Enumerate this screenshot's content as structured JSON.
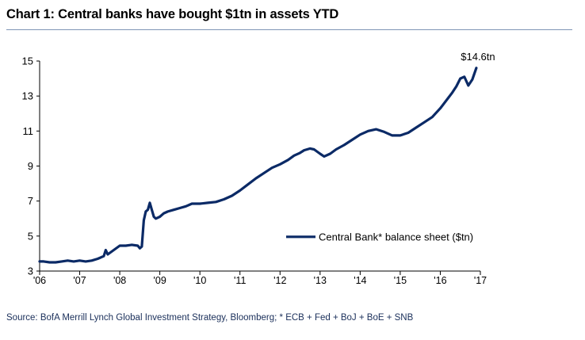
{
  "title": "Chart 1: Central banks have bought $1tn in assets YTD",
  "source": "Source: BofA Merrill Lynch Global Investment Strategy, Bloomberg; * ECB + Fed + BoJ + BoE + SNB",
  "colors": {
    "series": "#0b2a66",
    "rule": "#7f95b5",
    "axis": "#000000"
  },
  "chart_data": {
    "type": "line",
    "title": "Chart 1: Central banks have bought $1tn in assets YTD",
    "xlabel": "",
    "ylabel": "",
    "x_tick_labels": [
      "'06",
      "'07",
      "'08",
      "'09",
      "'10",
      "'11",
      "'12",
      "'13",
      "'14",
      "'15",
      "'16",
      "'17"
    ],
    "y_ticks": [
      3,
      5,
      7,
      9,
      11,
      13,
      15
    ],
    "xlim": [
      2006,
      2017
    ],
    "ylim": [
      3,
      15
    ],
    "grid": false,
    "legend": "right-center",
    "annotation": "$14.6tn",
    "series": [
      {
        "name": "Central Bank* balance sheet ($tn)",
        "x": [
          2006.0,
          2006.1,
          2006.25,
          2006.4,
          2006.55,
          2006.7,
          2006.85,
          2007.0,
          2007.15,
          2007.3,
          2007.45,
          2007.6,
          2007.65,
          2007.7,
          2007.85,
          2008.0,
          2008.15,
          2008.3,
          2008.45,
          2008.5,
          2008.55,
          2008.6,
          2008.65,
          2008.7,
          2008.75,
          2008.8,
          2008.85,
          2008.9,
          2009.0,
          2009.1,
          2009.2,
          2009.35,
          2009.5,
          2009.65,
          2009.8,
          2010.0,
          2010.2,
          2010.4,
          2010.6,
          2010.8,
          2011.0,
          2011.2,
          2011.4,
          2011.6,
          2011.8,
          2012.0,
          2012.2,
          2012.35,
          2012.5,
          2012.6,
          2012.75,
          2012.85,
          2013.0,
          2013.1,
          2013.25,
          2013.4,
          2013.6,
          2013.8,
          2014.0,
          2014.2,
          2014.4,
          2014.6,
          2014.8,
          2015.0,
          2015.2,
          2015.4,
          2015.6,
          2015.8,
          2016.0,
          2016.2,
          2016.3,
          2016.4,
          2016.5,
          2016.6,
          2016.7,
          2016.8,
          2016.9
        ],
        "values": [
          3.55,
          3.55,
          3.5,
          3.5,
          3.55,
          3.6,
          3.55,
          3.6,
          3.55,
          3.6,
          3.7,
          3.85,
          4.2,
          3.95,
          4.2,
          4.45,
          4.45,
          4.5,
          4.45,
          4.3,
          4.4,
          5.9,
          6.4,
          6.5,
          6.9,
          6.5,
          6.1,
          6.0,
          6.1,
          6.3,
          6.4,
          6.5,
          6.6,
          6.7,
          6.85,
          6.85,
          6.9,
          6.95,
          7.1,
          7.3,
          7.6,
          7.95,
          8.3,
          8.6,
          8.9,
          9.1,
          9.35,
          9.6,
          9.75,
          9.9,
          10.0,
          9.95,
          9.7,
          9.55,
          9.7,
          9.95,
          10.2,
          10.5,
          10.8,
          11.0,
          11.1,
          10.95,
          10.75,
          10.75,
          10.9,
          11.2,
          11.5,
          11.8,
          12.3,
          12.9,
          13.2,
          13.55,
          14.0,
          14.1,
          13.6,
          13.95,
          14.6
        ]
      }
    ]
  }
}
